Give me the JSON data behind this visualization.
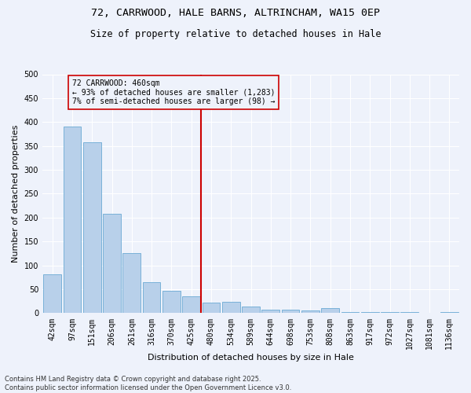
{
  "title_line1": "72, CARRWOOD, HALE BARNS, ALTRINCHAM, WA15 0EP",
  "title_line2": "Size of property relative to detached houses in Hale",
  "xlabel": "Distribution of detached houses by size in Hale",
  "ylabel": "Number of detached properties",
  "categories": [
    "42sqm",
    "97sqm",
    "151sqm",
    "206sqm",
    "261sqm",
    "316sqm",
    "370sqm",
    "425sqm",
    "480sqm",
    "534sqm",
    "589sqm",
    "644sqm",
    "698sqm",
    "753sqm",
    "808sqm",
    "863sqm",
    "917sqm",
    "972sqm",
    "1027sqm",
    "1081sqm",
    "1136sqm"
  ],
  "values": [
    82,
    390,
    357,
    208,
    125,
    65,
    47,
    35,
    22,
    23,
    14,
    8,
    8,
    6,
    10,
    3,
    3,
    2,
    2,
    1,
    2
  ],
  "bar_color": "#b8d0ea",
  "bar_edgecolor": "#6aaad4",
  "vline_color": "#cc0000",
  "annotation_text": "72 CARRWOOD: 460sqm\n← 93% of detached houses are smaller (1,283)\n7% of semi-detached houses are larger (98) →",
  "annotation_fontsize": 7,
  "box_color": "#cc0000",
  "ylim": [
    0,
    500
  ],
  "yticks": [
    0,
    50,
    100,
    150,
    200,
    250,
    300,
    350,
    400,
    450,
    500
  ],
  "footer_line1": "Contains HM Land Registry data © Crown copyright and database right 2025.",
  "footer_line2": "Contains public sector information licensed under the Open Government Licence v3.0.",
  "background_color": "#eef2fb",
  "grid_color": "#ffffff",
  "title_fontsize": 9.5,
  "subtitle_fontsize": 8.5,
  "xlabel_fontsize": 8,
  "ylabel_fontsize": 8,
  "tick_fontsize": 7,
  "footer_fontsize": 6
}
